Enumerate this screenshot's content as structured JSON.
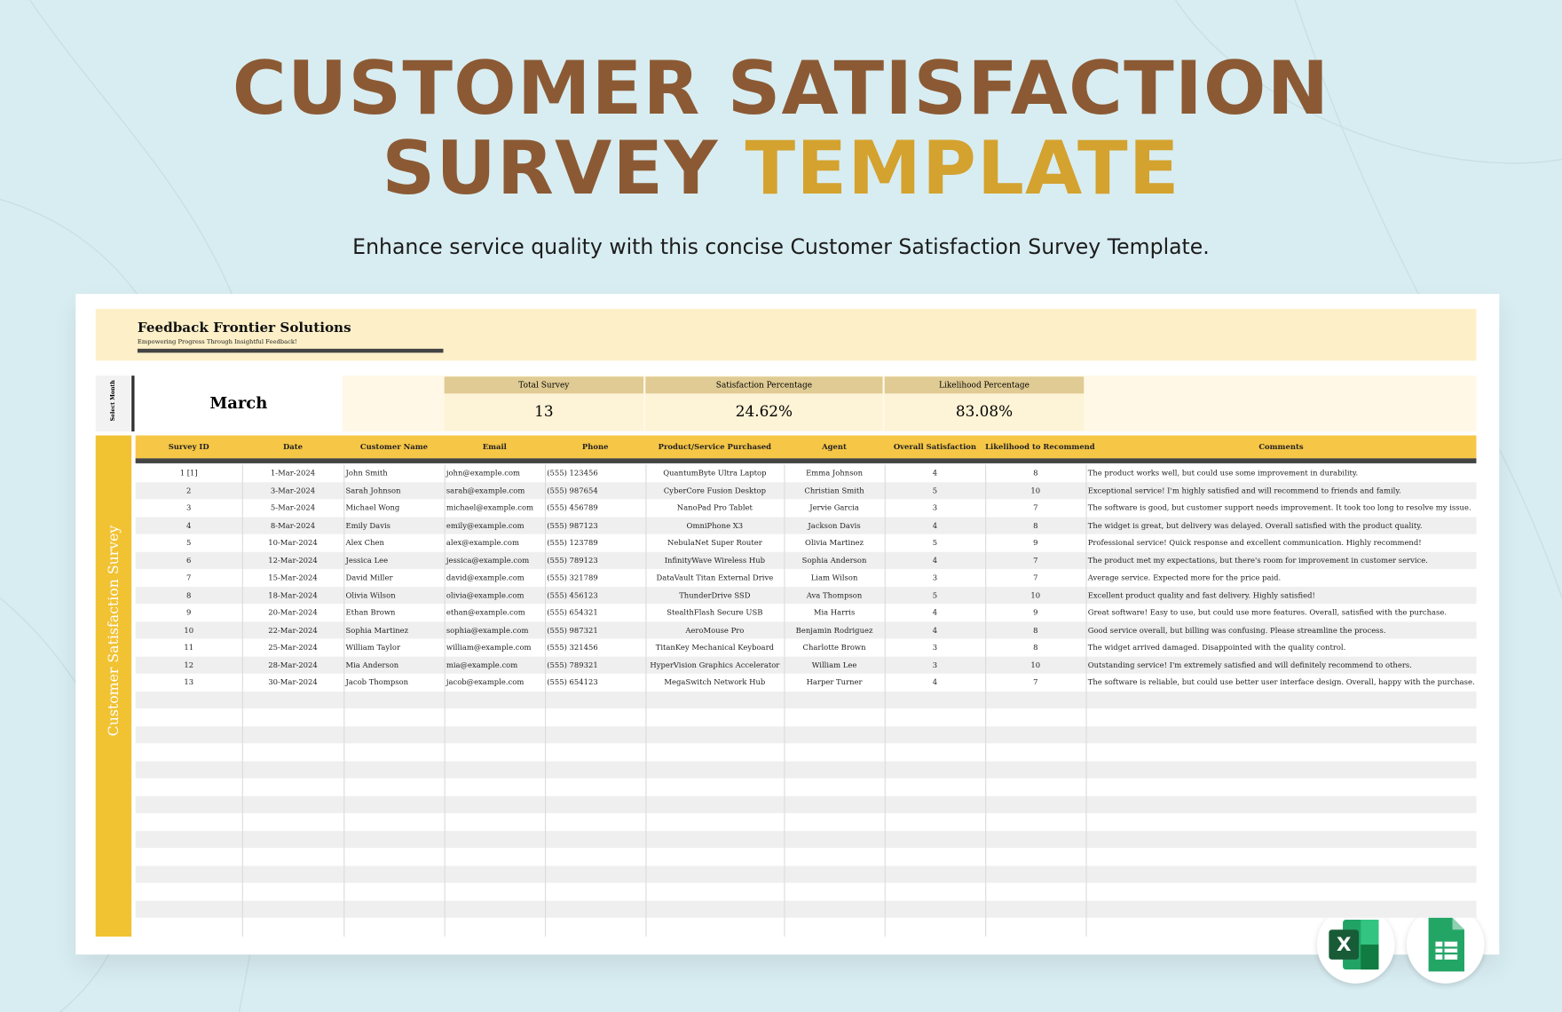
{
  "header": {
    "title_line1": "CUSTOMER SATISFACTION",
    "title_word1": "SURVEY",
    "title_word2": "TEMPLATE",
    "subtitle": "Enhance service quality with this concise Customer Satisfaction Survey Template."
  },
  "sheet": {
    "company": "Feedback Frontier Solutions",
    "tagline": "Empowering Progress Through Insightful Feedback!",
    "month_label": "Select Month",
    "month": "March",
    "summary": [
      {
        "label": "Total Survey",
        "value": "13"
      },
      {
        "label": "Satisfaction Percentage",
        "value": "24.62%"
      },
      {
        "label": "Likelihood Percentage",
        "value": "83.08%"
      }
    ],
    "side_title": "Customer Satisfaction Survey",
    "table": {
      "columns": [
        "Survey ID",
        "Date",
        "Customer Name",
        "Email",
        "Phone",
        "Product/Service Purchased",
        "Agent",
        "Overall Satisfaction",
        "Likelihood to Recommend",
        "Comments"
      ],
      "rows": [
        [
          "1 [1]",
          "1-Mar-2024",
          "John Smith",
          "john@example.com",
          "(555) 123456",
          "QuantumByte Ultra Laptop",
          "Emma Johnson",
          4,
          8,
          "The product works well, but could use some improvement in durability."
        ],
        [
          "2",
          "3-Mar-2024",
          "Sarah Johnson",
          "sarah@example.com",
          "(555) 987654",
          "CyberCore Fusion Desktop",
          "Christian Smith",
          5,
          10,
          "Exceptional service! I'm highly satisfied and will recommend to friends and family."
        ],
        [
          "3",
          "5-Mar-2024",
          "Michael Wong",
          "michael@example.com",
          "(555) 456789",
          "NanoPad Pro Tablet",
          "Jervie Garcia",
          3,
          7,
          "The software is good, but customer support needs improvement. It took too long to resolve my issue."
        ],
        [
          "4",
          "8-Mar-2024",
          "Emily Davis",
          "emily@example.com",
          "(555) 987123",
          "OmniPhone X3",
          "Jackson Davis",
          4,
          8,
          "The widget is great, but delivery was delayed. Overall satisfied with the product quality."
        ],
        [
          "5",
          "10-Mar-2024",
          "Alex Chen",
          "alex@example.com",
          "(555) 123789",
          "NebulaNet Super Router",
          "Olivia Martinez",
          5,
          9,
          "Professional service! Quick response and excellent communication. Highly recommend!"
        ],
        [
          "6",
          "12-Mar-2024",
          "Jessica Lee",
          "jessica@example.com",
          "(555) 789123",
          "InfinityWave Wireless Hub",
          "Sophia Anderson",
          4,
          7,
          "The product met my expectations, but there's room for improvement in customer service."
        ],
        [
          "7",
          "15-Mar-2024",
          "David Miller",
          "david@example.com",
          "(555) 321789",
          "DataVault Titan External Drive",
          "Liam Wilson",
          3,
          7,
          "Average service. Expected more for the price paid."
        ],
        [
          "8",
          "18-Mar-2024",
          "Olivia Wilson",
          "olivia@example.com",
          "(555) 456123",
          "ThunderDrive SSD",
          "Ava Thompson",
          5,
          10,
          "Excellent product quality and fast delivery. Highly satisfied!"
        ],
        [
          "9",
          "20-Mar-2024",
          "Ethan Brown",
          "ethan@example.com",
          "(555) 654321",
          "StealthFlash Secure USB",
          "Mia Harris",
          4,
          9,
          "Great software! Easy to use, but could use more features. Overall, satisfied with the purchase."
        ],
        [
          "10",
          "22-Mar-2024",
          "Sophia Martinez",
          "sophia@example.com",
          "(555) 987321",
          "AeroMouse Pro",
          "Benjamin Rodriguez",
          4,
          8,
          "Good service overall, but billing was confusing. Please streamline the process."
        ],
        [
          "11",
          "25-Mar-2024",
          "William Taylor",
          "william@example.com",
          "(555) 321456",
          "TitanKey Mechanical Keyboard",
          "Charlotte Brown",
          3,
          8,
          "The widget arrived damaged. Disappointed with the quality control."
        ],
        [
          "12",
          "28-Mar-2024",
          "Mia Anderson",
          "mia@example.com",
          "(555) 789321",
          "HyperVision Graphics Accelerator",
          "William Lee",
          3,
          10,
          "Outstanding service! I'm extremely satisfied and will definitely recommend to others."
        ],
        [
          "13",
          "30-Mar-2024",
          "Jacob Thompson",
          "jacob@example.com",
          "(555) 654123",
          "MegaSwitch Network Hub",
          "Harper Turner",
          4,
          7,
          "The software is reliable, but could use better user interface design. Overall, happy with the purchase."
        ]
      ]
    }
  }
}
